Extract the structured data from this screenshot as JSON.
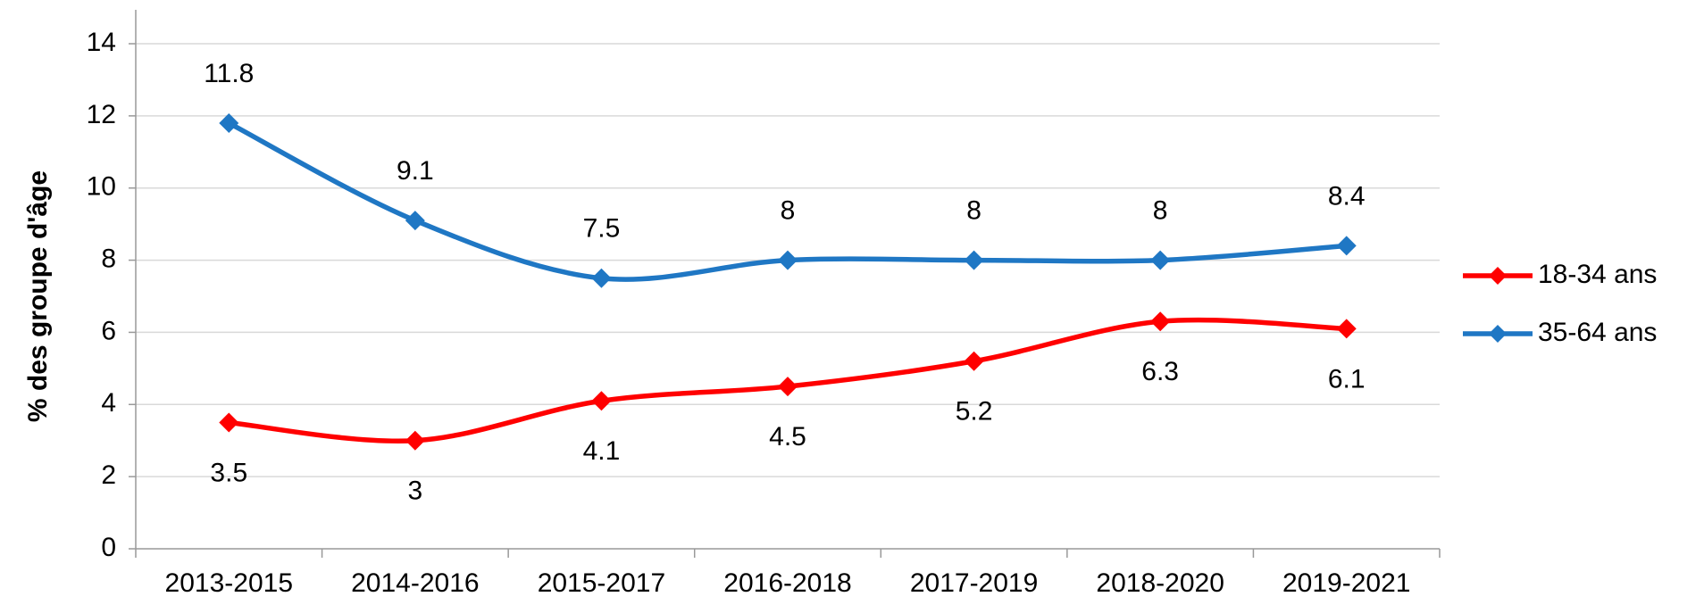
{
  "chart_data": {
    "type": "line",
    "y_label": "% des groupe d'âge",
    "categories": [
      "2013-2015",
      "2014-2016",
      "2015-2017",
      "2016-2018",
      "2017-2019",
      "2018-2020",
      "2019-2021"
    ],
    "series": [
      {
        "name": "18-34 ans",
        "color": "#ff0000",
        "values": [
          3.5,
          3,
          4.1,
          4.5,
          5.2,
          6.3,
          6.1
        ]
      },
      {
        "name": "35-64 ans",
        "color": "#1f77c4",
        "values": [
          11.8,
          9.1,
          7.5,
          8,
          8,
          8,
          8.4
        ]
      }
    ],
    "ylim": [
      0,
      14
    ],
    "yticks": [
      0,
      2,
      4,
      6,
      8,
      10,
      12,
      14
    ],
    "grid": true,
    "legend": "right"
  }
}
